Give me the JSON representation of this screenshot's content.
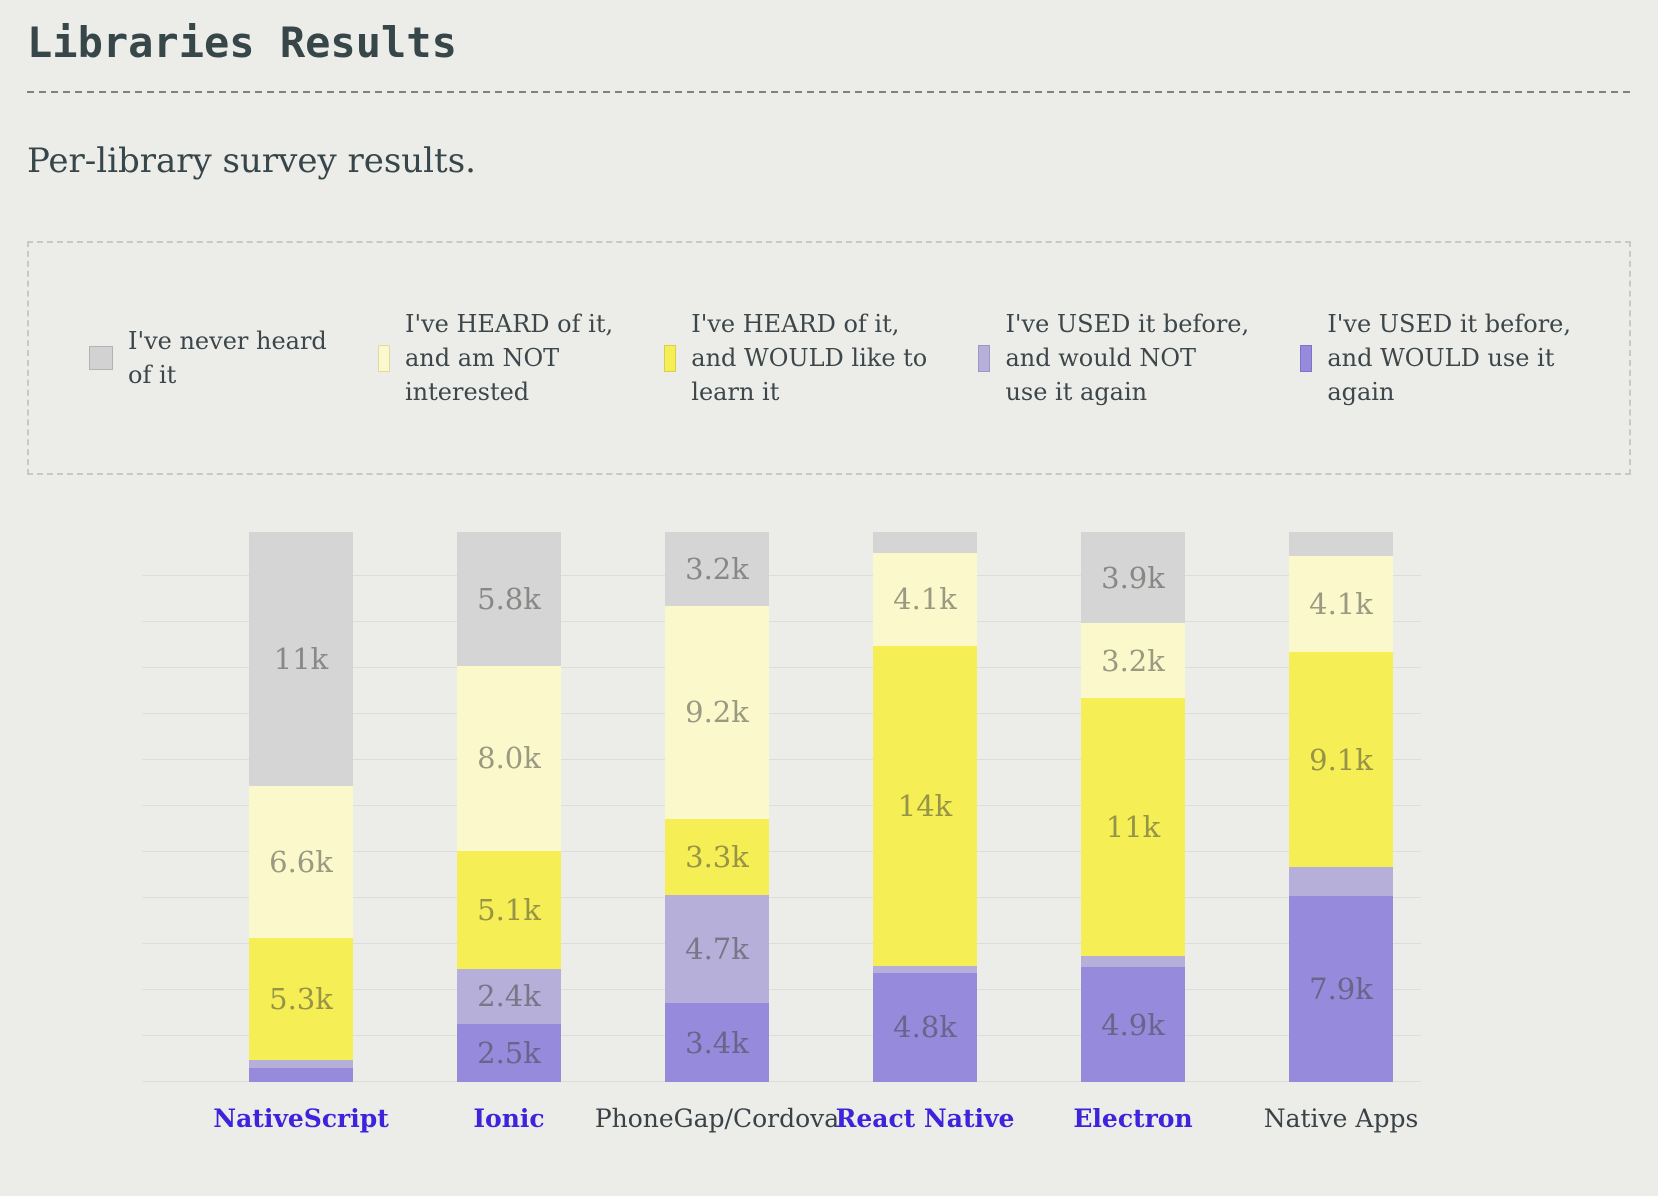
{
  "page": {
    "title": "Libraries Results",
    "subtitle": "Per-library survey results."
  },
  "legend": {
    "items": [
      {
        "id": "never-heard",
        "label": "I've never heard\nof it",
        "color": "#d2d2d2",
        "border": "#b3b3b3"
      },
      {
        "id": "heard-not-interested",
        "label": "I've HEARD of it,\nand am NOT\ninterested",
        "color": "#fbf9cc",
        "border": "#ddd8a8"
      },
      {
        "id": "heard-would-learn",
        "label": "I've HEARD of it,\nand WOULD like to\nlearn it",
        "color": "#f5ee55",
        "border": "#d8d04b"
      },
      {
        "id": "used-not-again",
        "label": "I've USED it before,\nand would NOT\nuse it again",
        "color": "#b6afd9",
        "border": "#9d95c6"
      },
      {
        "id": "used-would-again",
        "label": "I've USED it before,\nand WOULD use it\nagain",
        "color": "#968add",
        "border": "#7f72c8"
      }
    ]
  },
  "chart_data": {
    "type": "bar",
    "stacked": true,
    "unit": "k = thousands of survey responses",
    "gridline_interval_k": 2,
    "legend_position": "top",
    "series_names": [
      "I've never heard of it",
      "I've HEARD of it, and am NOT interested",
      "I've HEARD of it, and WOULD like to learn it",
      "I've USED it before, and would NOT use it again",
      "I've USED it before, and WOULD use it again"
    ],
    "series_colors": [
      "#d5d5d6",
      "#fbf9cc",
      "#f5ee55",
      "#b6afd9",
      "#968add"
    ],
    "categories": [
      "NativeScript",
      "Ionic",
      "PhoneGap/Cordova",
      "React Native",
      "Electron",
      "Native Apps"
    ],
    "columns": [
      {
        "category": "NativeScript",
        "is_link": true,
        "segments": [
          {
            "series": "never-heard",
            "value_k": 11,
            "label": "11k"
          },
          {
            "series": "heard-not-interested",
            "value_k": 6.6,
            "label": "6.6k"
          },
          {
            "series": "heard-would-learn",
            "value_k": 5.3,
            "label": "5.3k"
          },
          {
            "series": "used-not-again",
            "value_k": 0.35,
            "label": ""
          },
          {
            "series": "used-would-again",
            "value_k": 0.6,
            "label": ""
          }
        ]
      },
      {
        "category": "Ionic",
        "is_link": true,
        "segments": [
          {
            "series": "never-heard",
            "value_k": 5.8,
            "label": "5.8k"
          },
          {
            "series": "heard-not-interested",
            "value_k": 8.0,
            "label": "8.0k"
          },
          {
            "series": "heard-would-learn",
            "value_k": 5.1,
            "label": "5.1k"
          },
          {
            "series": "used-not-again",
            "value_k": 2.4,
            "label": "2.4k"
          },
          {
            "series": "used-would-again",
            "value_k": 2.5,
            "label": "2.5k"
          }
        ]
      },
      {
        "category": "PhoneGap/Cordova",
        "is_link": false,
        "segments": [
          {
            "series": "never-heard",
            "value_k": 3.2,
            "label": "3.2k"
          },
          {
            "series": "heard-not-interested",
            "value_k": 9.2,
            "label": "9.2k"
          },
          {
            "series": "heard-would-learn",
            "value_k": 3.3,
            "label": "3.3k"
          },
          {
            "series": "used-not-again",
            "value_k": 4.7,
            "label": "4.7k"
          },
          {
            "series": "used-would-again",
            "value_k": 3.4,
            "label": "3.4k"
          }
        ]
      },
      {
        "category": "React Native",
        "is_link": true,
        "segments": [
          {
            "series": "never-heard",
            "value_k": 0.9,
            "label": ""
          },
          {
            "series": "heard-not-interested",
            "value_k": 4.1,
            "label": "4.1k"
          },
          {
            "series": "heard-would-learn",
            "value_k": 14,
            "label": "14k"
          },
          {
            "series": "used-not-again",
            "value_k": 0.3,
            "label": ""
          },
          {
            "series": "used-would-again",
            "value_k": 4.8,
            "label": "4.8k"
          }
        ]
      },
      {
        "category": "Electron",
        "is_link": true,
        "segments": [
          {
            "series": "never-heard",
            "value_k": 3.9,
            "label": "3.9k"
          },
          {
            "series": "heard-not-interested",
            "value_k": 3.2,
            "label": "3.2k"
          },
          {
            "series": "heard-would-learn",
            "value_k": 11,
            "label": "11k"
          },
          {
            "series": "used-not-again",
            "value_k": 0.5,
            "label": ""
          },
          {
            "series": "used-would-again",
            "value_k": 4.9,
            "label": "4.9k"
          }
        ]
      },
      {
        "category": "Native Apps",
        "is_link": false,
        "segments": [
          {
            "series": "never-heard",
            "value_k": 1.0,
            "label": ""
          },
          {
            "series": "heard-not-interested",
            "value_k": 4.1,
            "label": "4.1k"
          },
          {
            "series": "heard-would-learn",
            "value_k": 9.1,
            "label": "9.1k"
          },
          {
            "series": "used-not-again",
            "value_k": 1.2,
            "label": ""
          },
          {
            "series": "used-would-again",
            "value_k": 7.9,
            "label": "7.9k"
          }
        ]
      }
    ]
  }
}
